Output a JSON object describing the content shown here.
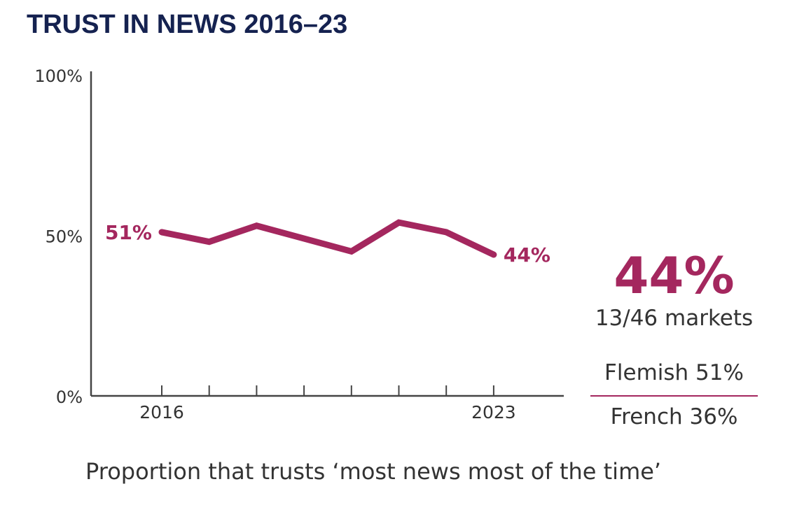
{
  "title": "TRUST IN NEWS 2016–23",
  "chart_data": {
    "type": "line",
    "x": [
      2016,
      2017,
      2018,
      2019,
      2020,
      2021,
      2022,
      2023
    ],
    "values": [
      51,
      48,
      53,
      49,
      45,
      54,
      51,
      44
    ],
    "ylim": [
      0,
      100
    ],
    "y_ticks": [
      "0%",
      "50%",
      "100%"
    ],
    "x_tick_labels": {
      "2016": "2016",
      "2023": "2023"
    },
    "data_labels": {
      "2016": "51%",
      "2023": "44%"
    },
    "grid": false,
    "line_color": "#a4275e"
  },
  "summary": {
    "headline": "44%",
    "markets": "13/46 markets",
    "flemish": "Flemish 51%",
    "french": "French 36%"
  },
  "caption": "Proportion that trusts ‘most news most of the time’"
}
